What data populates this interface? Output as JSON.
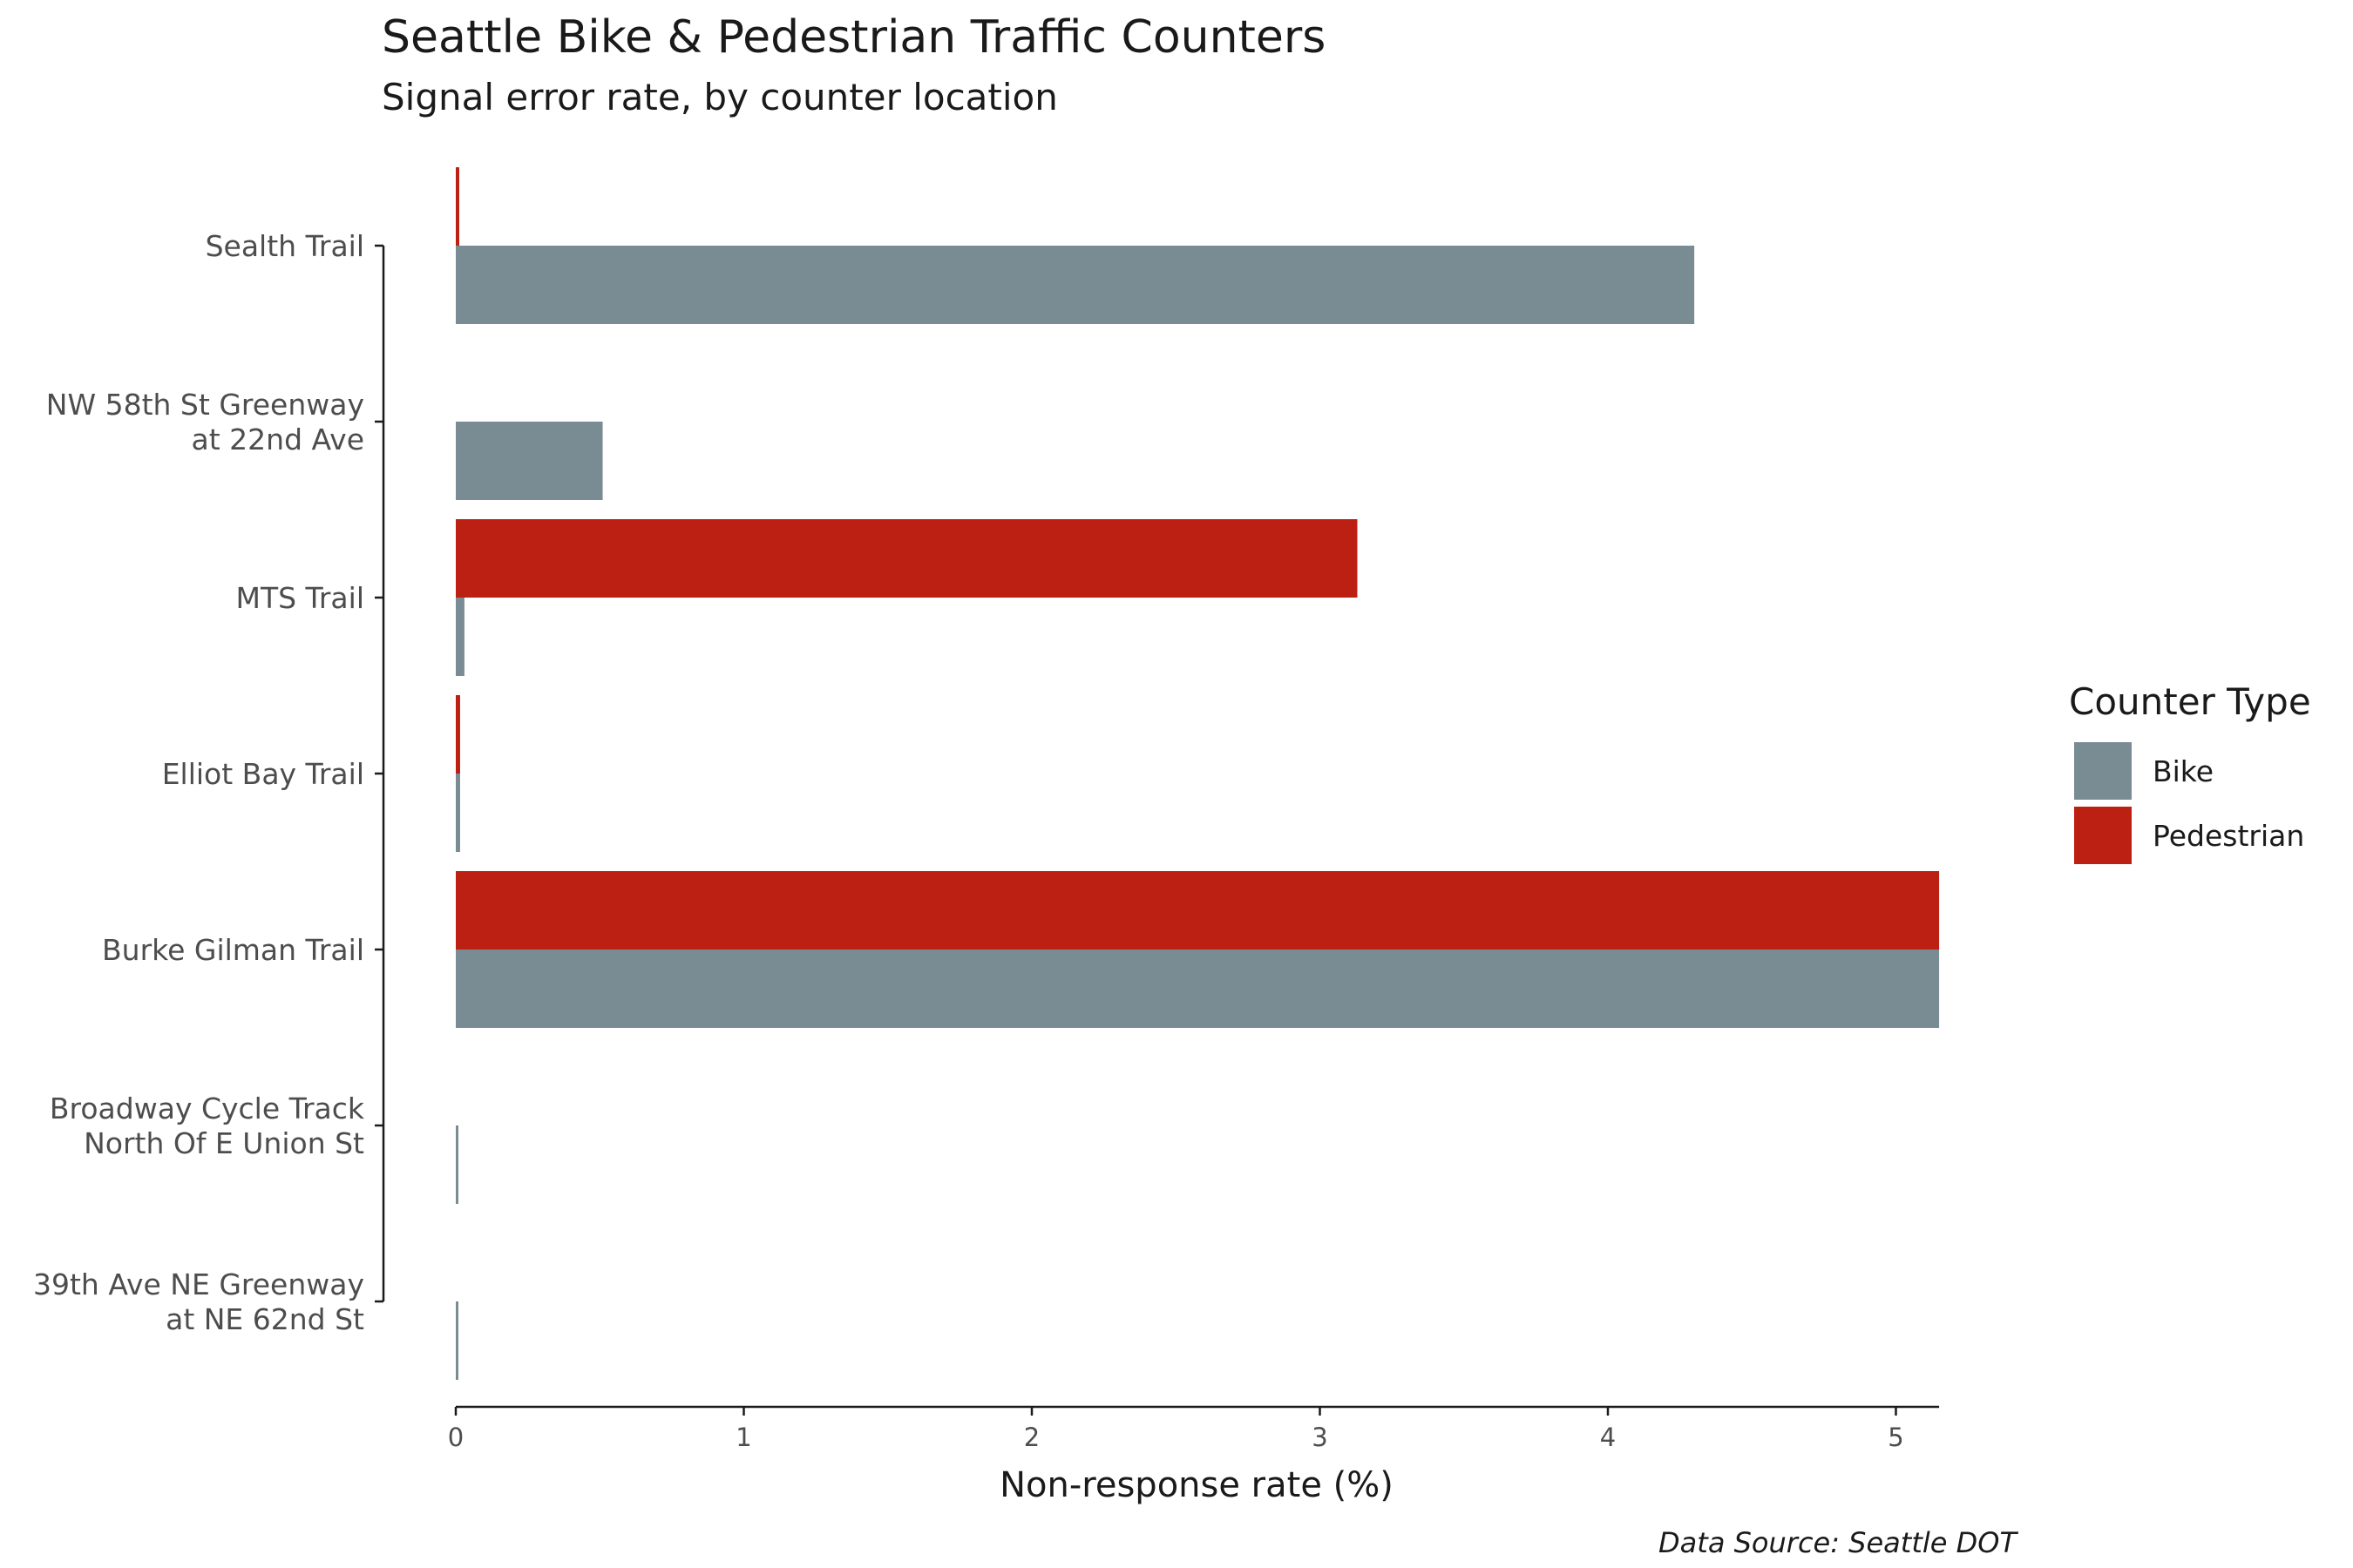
{
  "colors": {
    "bike": "#7a8c93",
    "pedestrian": "#bb2012",
    "text": "#1a1a1a",
    "tick_text": "#4d4d4d"
  },
  "chart_data": {
    "type": "bar",
    "orientation": "horizontal",
    "title": "Seattle Bike & Pedestrian Traffic Counters",
    "subtitle": "Signal error rate, by counter location",
    "xlabel": "Non-response rate (%)",
    "ylabel": "",
    "caption": "Data Source: Seattle DOT",
    "xlim": [
      0,
      5.15
    ],
    "xticks": [
      "0",
      "1",
      "2",
      "3",
      "4",
      "5"
    ],
    "grid": false,
    "legend": {
      "title": "Counter Type",
      "position": "right"
    },
    "categories": [
      [
        "Sealth Trail"
      ],
      [
        "NW 58th St Greenway",
        "at 22nd Ave"
      ],
      [
        "MTS Trail"
      ],
      [
        "Elliot Bay Trail"
      ],
      [
        "Burke Gilman Trail"
      ],
      [
        "Broadway Cycle Track",
        "North Of E Union St"
      ],
      [
        "39th Ave NE Greenway",
        "at NE 62nd St"
      ]
    ],
    "series": [
      {
        "name": "Bike",
        "color": "#7a8c93",
        "values": [
          4.3,
          0.51,
          0.03,
          0.015,
          5.15,
          0.008,
          0.008
        ]
      },
      {
        "name": "Pedestrian",
        "color": "#bb2012",
        "values": [
          0.012,
          null,
          3.13,
          0.015,
          5.15,
          null,
          null
        ]
      }
    ]
  }
}
